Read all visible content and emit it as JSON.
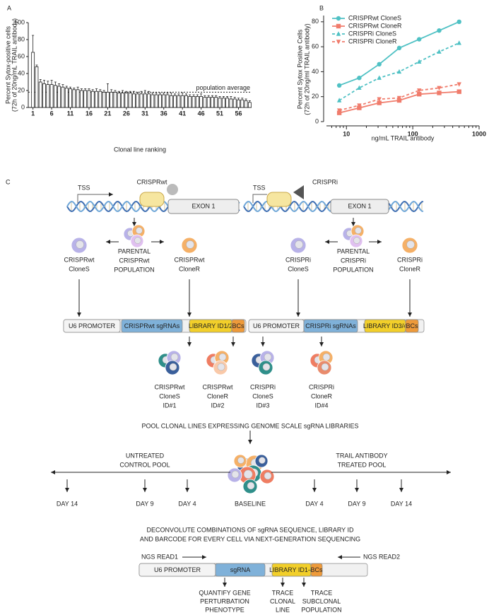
{
  "chart_data": [
    {
      "type": "bar",
      "label": "A",
      "ylabel": "Percent Sytox-positive cells",
      "ylabel_sub": "(72h of 20ng/mL TRAIL antibody)",
      "xlabel": "Clonal line ranking",
      "categories": [
        "1",
        null,
        null,
        null,
        null,
        "6",
        null,
        null,
        null,
        null,
        "11",
        null,
        null,
        null,
        null,
        "16",
        null,
        null,
        null,
        null,
        "21",
        null,
        null,
        null,
        null,
        "26",
        null,
        null,
        null,
        null,
        "31",
        null,
        null,
        null,
        null,
        "36",
        null,
        null,
        null,
        null,
        "41",
        null,
        null,
        null,
        null,
        "46",
        null,
        null,
        null,
        null,
        "51",
        null,
        null,
        null,
        null,
        "56",
        null,
        null,
        null
      ],
      "values": [
        65,
        48,
        30,
        28,
        27,
        27,
        26,
        25,
        24,
        23,
        22,
        21,
        21,
        20,
        20,
        20,
        19,
        19,
        19,
        18,
        18,
        18,
        18,
        17,
        17,
        17,
        17,
        16,
        16,
        16,
        16,
        16,
        15,
        15,
        15,
        15,
        15,
        14,
        14,
        14,
        14,
        14,
        13,
        13,
        13,
        13,
        12,
        12,
        12,
        12,
        11,
        11,
        11,
        10,
        10,
        9,
        9,
        8,
        6
      ],
      "errors": [
        20,
        2,
        3,
        4,
        4,
        5,
        4,
        3,
        3,
        2,
        2,
        2,
        3,
        2,
        2,
        2,
        2,
        3,
        2,
        2,
        10,
        3,
        2,
        2,
        3,
        2,
        2,
        3,
        2,
        3,
        4,
        3,
        2,
        2,
        2,
        2,
        2,
        3,
        2,
        2,
        3,
        2,
        2,
        2,
        2,
        3,
        2,
        2,
        2,
        2,
        2,
        2,
        2,
        3,
        2,
        2,
        2,
        2,
        2
      ],
      "color": "#ffffff",
      "ylim": [
        0,
        100
      ],
      "yticks": [
        0,
        20,
        40,
        60,
        80,
        100
      ],
      "reference_line": {
        "value": 18,
        "label": "population average"
      }
    },
    {
      "type": "line",
      "label": "B",
      "ylabel": "Percent Sytox Positive Cells",
      "ylabel_sub": "(72h of 20ng/ml TRAIL antibody)",
      "xlabel": "ng/mL TRAIL antibody",
      "xscale": "log",
      "xlim": [
        5,
        1000
      ],
      "xticks": [
        10,
        100,
        1000
      ],
      "ylim": [
        0,
        85
      ],
      "yticks": [
        0,
        20,
        40,
        60,
        80
      ],
      "legend": "top-left",
      "x": [
        7.8,
        15.6,
        31.25,
        62.5,
        125,
        250,
        500
      ],
      "series": [
        {
          "name": "CRISPRwt CloneS",
          "color": "#4fc1c4",
          "marker": "circle",
          "line_style": "solid",
          "values": [
            29,
            35,
            46,
            59,
            66,
            73,
            80
          ]
        },
        {
          "name": "CRISPRwt CloneR",
          "color": "#f07c6c",
          "marker": "square",
          "line_style": "solid",
          "values": [
            7,
            11,
            15,
            17,
            22,
            23,
            24
          ]
        },
        {
          "name": "CRISPRi CloneS",
          "color": "#4fc1c4",
          "marker": "triangle",
          "line_style": "dashed",
          "values": [
            17,
            27,
            35,
            40,
            48,
            56,
            63
          ]
        },
        {
          "name": "CRISPRi CloneR",
          "color": "#f07c6c",
          "marker": "triangle-down",
          "line_style": "dashed",
          "values": [
            9,
            13,
            18,
            19,
            25,
            27,
            30
          ]
        }
      ]
    }
  ],
  "diagram": {
    "label": "C",
    "constructs": [
      {
        "tss": "TSS",
        "name": "CRISPRwt",
        "exon": "EXON 1"
      },
      {
        "tss": "TSS",
        "name": "CRISPRi",
        "exon": "EXON 1"
      }
    ],
    "wt_clone_s": [
      "CRISPRwt",
      "CloneS"
    ],
    "wt_parent": [
      "PARENTAL",
      "CRISPRwt",
      "POPULATION"
    ],
    "wt_clone_r": [
      "CRISPRwt",
      "CloneR"
    ],
    "i_clone_s": [
      "CRISPRi",
      "CloneS"
    ],
    "i_parent": [
      "PARENTAL",
      "CRISPRi",
      "POPULATION"
    ],
    "i_clone_r": [
      "CRISPRi",
      "CloneR"
    ],
    "vector_wt": [
      "U6 PROMOTER",
      "CRISPRwt sgRNAs",
      "LIBRARY ID1/2",
      "BCs"
    ],
    "vector_i": [
      "U6 PROMOTER",
      "CRISPRi sgRNAs",
      "LIBRARY ID3/4",
      "BCs"
    ],
    "libraries": [
      [
        "CRISPRwt",
        "CloneS",
        "ID#1"
      ],
      [
        "CRISPRwt",
        "CloneR",
        "ID#2"
      ],
      [
        "CRISPRi",
        "CloneS",
        "ID#3"
      ],
      [
        "CRISPRi",
        "CloneR",
        "ID#4"
      ]
    ],
    "pool": "POOL CLONAL LINES EXPRESSING GENOME SCALE sgRNA LIBRARIES",
    "untreated": [
      "UNTREATED",
      "CONTROL POOL"
    ],
    "treated": [
      "TRAIL ANTIBODY",
      "TREATED POOL"
    ],
    "timepoints": [
      "DAY 14",
      "DAY 9",
      "DAY 4",
      "BASELINE",
      "DAY 4",
      "DAY 9",
      "DAY 14"
    ],
    "deconvolute": [
      "DECONVOLUTE COMBINATIONS OF sgRNA SEQUENCE, LIBRARY ID",
      "AND BARCODE FOR EVERY CELL VIA NEXT-GENERATION SEQUENCING"
    ],
    "reads": [
      "NGS READ1",
      "NGS READ2"
    ],
    "vector_final": [
      "U6 PROMOTER",
      "sgRNA",
      "LIBRARY ID1-4",
      "BCs"
    ],
    "readouts": [
      [
        "QUANTIFY GENE",
        "PERTURBATION",
        "PHENOTYPE"
      ],
      [
        "TRACE",
        "CLONAL",
        "LINE"
      ],
      [
        "TRACE",
        "SUBCLONAL",
        "POPULATION"
      ]
    ]
  }
}
